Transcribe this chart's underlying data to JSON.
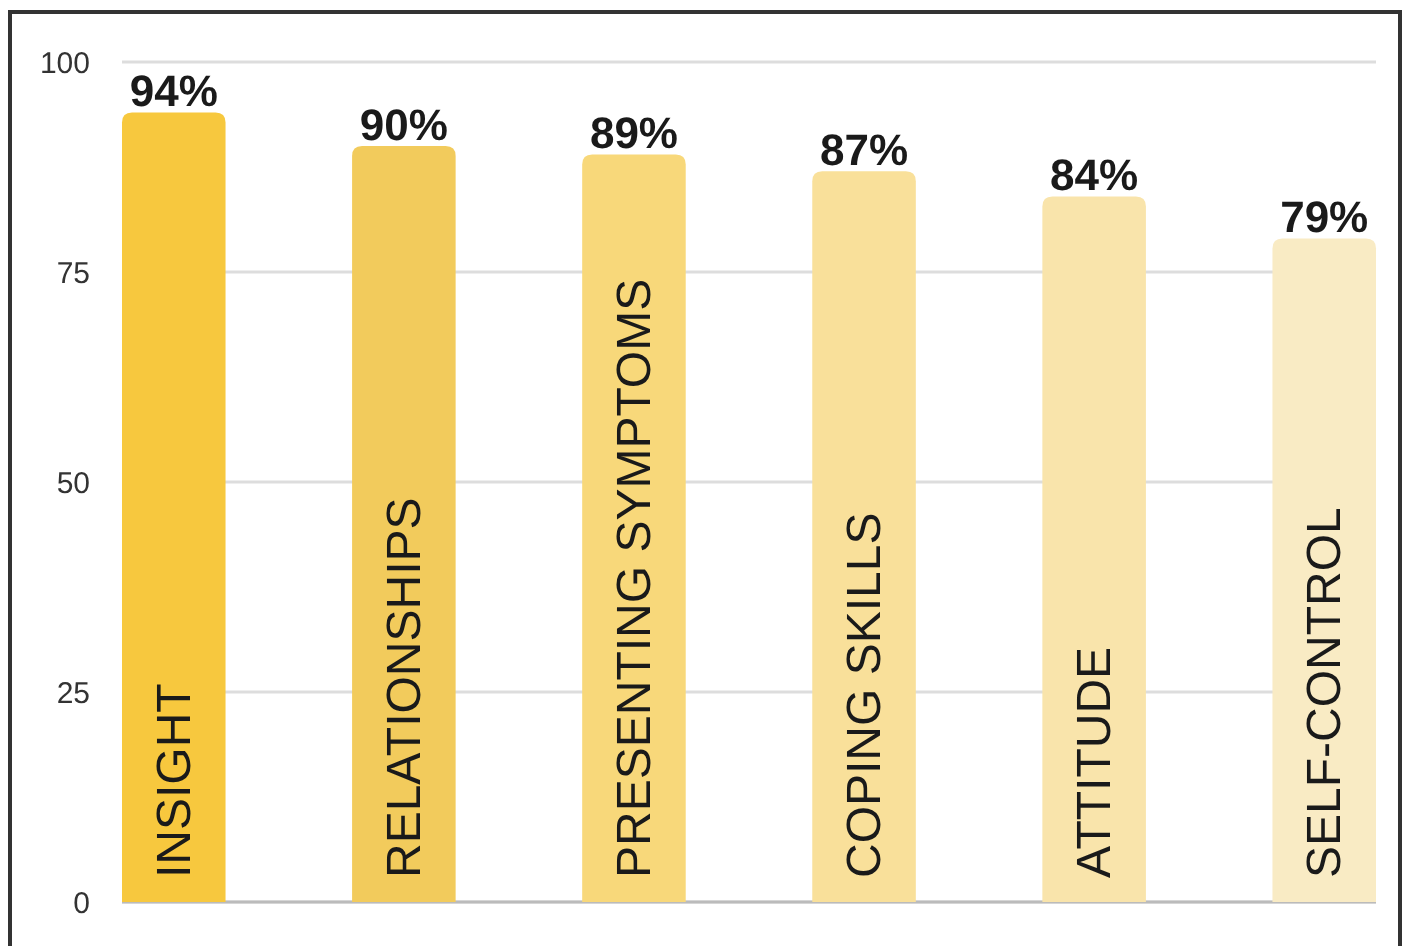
{
  "chart_data": {
    "type": "bar",
    "categories": [
      "INSIGHT",
      "RELATIONSHIPS",
      "PRESENTING SYMPTOMS",
      "COPING SKILLS",
      "ATTITUDE",
      "SELF-CONTROL"
    ],
    "values": [
      94,
      90,
      89,
      87,
      84,
      79
    ],
    "colors": [
      "#f7c83e",
      "#f2cb5c",
      "#f8d87a",
      "#f9e09a",
      "#f9e4ab",
      "#f9ebc4"
    ],
    "value_labels": [
      "94%",
      "90%",
      "89%",
      "87%",
      "84%",
      "79%"
    ],
    "ylim": [
      0,
      100
    ],
    "yticks": [
      0,
      25,
      50,
      75,
      100
    ],
    "grid": "y"
  }
}
